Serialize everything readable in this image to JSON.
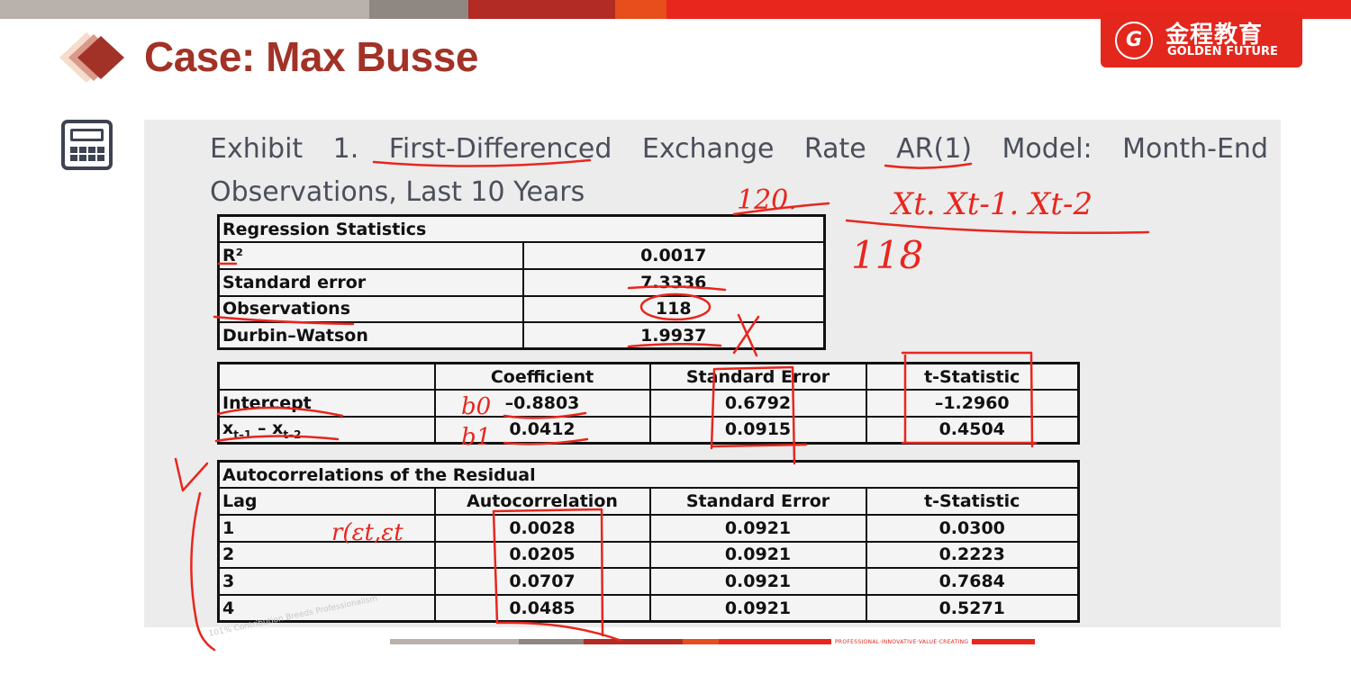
{
  "header": {
    "title": "Case: Max Busse",
    "logo": {
      "cn": "金程教育",
      "en": "GOLDEN FUTURE",
      "seal": "G"
    },
    "topbar_colors": [
      "#b8b1ac",
      "#8f8781",
      "#b22b24",
      "#e84e1c",
      "#e8261e"
    ]
  },
  "exhibit": {
    "title": "Exhibit 1.  First-Differenced Exchange Rate AR(1) Model: Month-End Observations, Last 10 Years"
  },
  "regression_stats": {
    "header": "Regression Statistics",
    "rows": [
      {
        "label": "R²",
        "value": "0.0017"
      },
      {
        "label": "Standard error",
        "value": "7.3336"
      },
      {
        "label": "Observations",
        "value": "118"
      },
      {
        "label": "Durbin–Watson",
        "value": "1.9937"
      }
    ]
  },
  "coefficients": {
    "columns": [
      "",
      "Coefficient",
      "Standard Error",
      "t-Statistic"
    ],
    "rows": [
      {
        "label": "Intercept",
        "coef": "–0.8803",
        "se": "0.6792",
        "t": "–1.2960"
      },
      {
        "label_main": "x",
        "label_sub1": "t–1",
        "label_mid": " – x",
        "label_sub2": "t–2",
        "coef": "0.0412",
        "se": "0.0915",
        "t": "0.4504"
      }
    ]
  },
  "autocorrelations": {
    "header": "Autocorrelations of the Residual",
    "columns": [
      "Lag",
      "Autocorrelation",
      "Standard Error",
      "t-Statistic"
    ],
    "rows": [
      [
        "1",
        "0.0028",
        "0.0921",
        "0.0300"
      ],
      [
        "2",
        "0.0205",
        "0.0921",
        "0.2223"
      ],
      [
        "3",
        "0.0707",
        "0.0921",
        "0.7684"
      ],
      [
        "4",
        "0.0485",
        "0.0921",
        "0.5271"
      ]
    ]
  },
  "footer": {
    "slogan": "PROFESSIONAL·INNOVATIVE·VALUE·CREATING",
    "watermark": "101% Contribution Breeds Professionalism"
  },
  "annotations": {
    "color": "#e8261e",
    "notes": [
      "120.",
      "Xt. Xt-1. Xt-2",
      "118",
      "b0",
      "b1",
      "r(εt,εt"
    ]
  }
}
